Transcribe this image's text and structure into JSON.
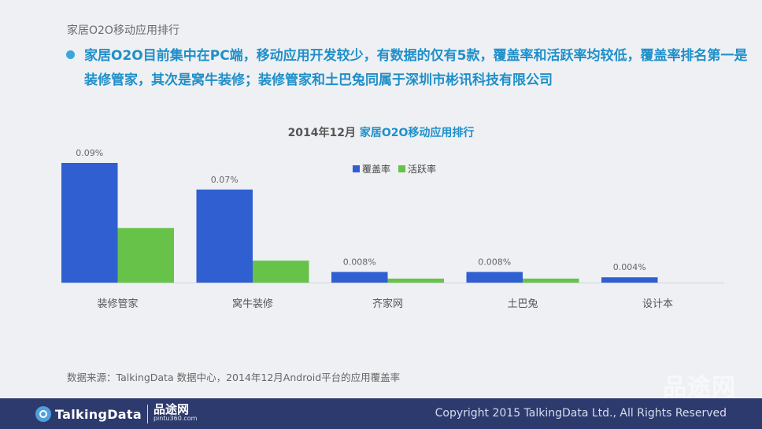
{
  "slide": {
    "small_title": "家居O2O移动应用排行",
    "headline": "家居O2O目前集中在PC端，移动应用开发较少，有数据的仅有5款，覆盖率和活跃率均较低，覆盖率排名第一是装修管家，其次是窝牛装修；装修管家和土巴兔同属于深圳市彬讯科技有限公司",
    "chart_title_prefix": "2014年12月",
    "chart_title_highlight": "家居O2O移动应用排行",
    "source": "数据来源：TalkingData 数据中心，2014年12月Android平台的应用覆盖率"
  },
  "footer": {
    "logo_text": "TalkingData",
    "partner_cn": "品途网",
    "partner_url": "pintu360.com",
    "copyright": "Copyright 2015 TalkingData Ltd., All Rights Reserved",
    "watermark": "品途网",
    "watermark_url": "pintu360.com"
  },
  "chart_data": {
    "type": "bar",
    "title": "2014年12月 家居O2O移动应用排行",
    "categories": [
      "装修管家",
      "窝牛装修",
      "齐家网",
      "土巴兔",
      "设计本"
    ],
    "series": [
      {
        "name": "覆盖率",
        "color": "#2f5fd0",
        "values": [
          0.09,
          0.07,
          0.008,
          0.008,
          0.004
        ],
        "labels": [
          "0.09%",
          "0.07%",
          "0.008%",
          "0.008%",
          "0.004%"
        ]
      },
      {
        "name": "活跃率",
        "color": "#67c24a",
        "values": [
          0.041,
          0.0165,
          0.003,
          0.003,
          0
        ]
      }
    ],
    "unit": "%",
    "grid": false,
    "legend": "top-center"
  }
}
